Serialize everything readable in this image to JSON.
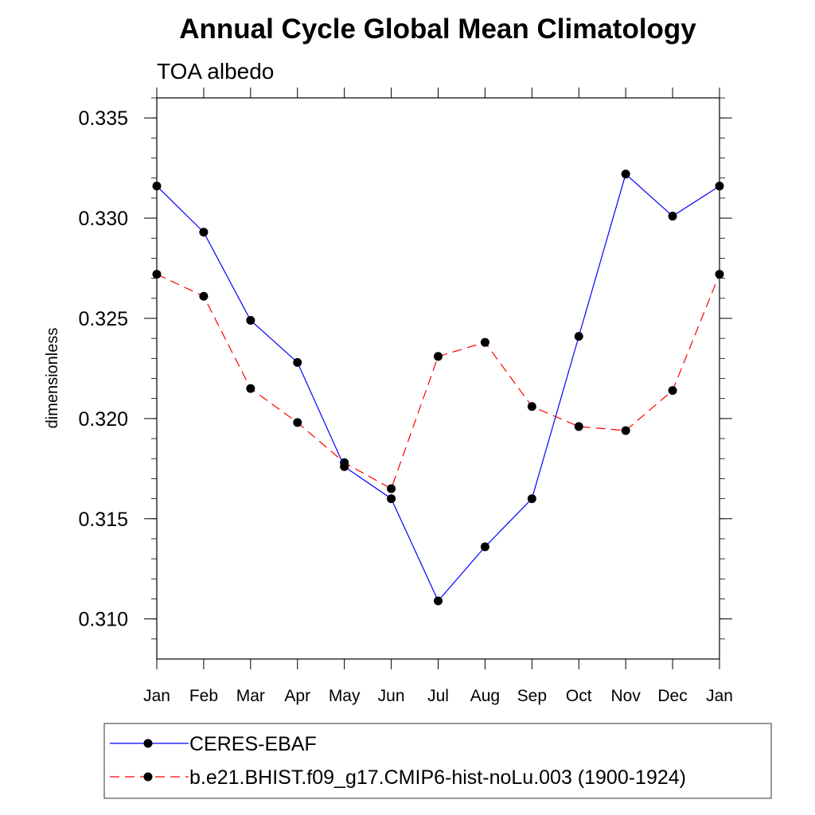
{
  "chart_data": {
    "type": "line",
    "title": "Annual Cycle Global Mean Climatology",
    "subtitle": "TOA albedo",
    "ylabel": "dimensionless",
    "xlabel": "",
    "categories": [
      "Jan",
      "Feb",
      "Mar",
      "Apr",
      "May",
      "Jun",
      "Jul",
      "Aug",
      "Sep",
      "Oct",
      "Nov",
      "Dec",
      "Jan"
    ],
    "ylim": [
      0.308,
      0.336
    ],
    "yticks": [
      "0.310",
      "0.315",
      "0.320",
      "0.325",
      "0.330",
      "0.335"
    ],
    "grid": false,
    "legend_position": "bottom",
    "series": [
      {
        "name": "CERES-EBAF",
        "color": "#0000ff",
        "line_style": "solid",
        "marker": "filled-circle",
        "values": [
          0.3316,
          0.3293,
          0.3249,
          0.3228,
          0.3176,
          0.316,
          0.3109,
          0.3136,
          0.316,
          0.3241,
          0.3322,
          0.3301,
          0.3316
        ]
      },
      {
        "name": "b.e21.BHIST.f09_g17.CMIP6-hist-noLu.003 (1900-1924)",
        "color": "#ff0000",
        "line_style": "dashed",
        "marker": "filled-circle",
        "values": [
          0.3272,
          0.3261,
          0.3215,
          0.3198,
          0.3178,
          0.3165,
          0.3231,
          0.3238,
          0.3206,
          0.3196,
          0.3194,
          0.3214,
          0.3272
        ]
      }
    ]
  }
}
